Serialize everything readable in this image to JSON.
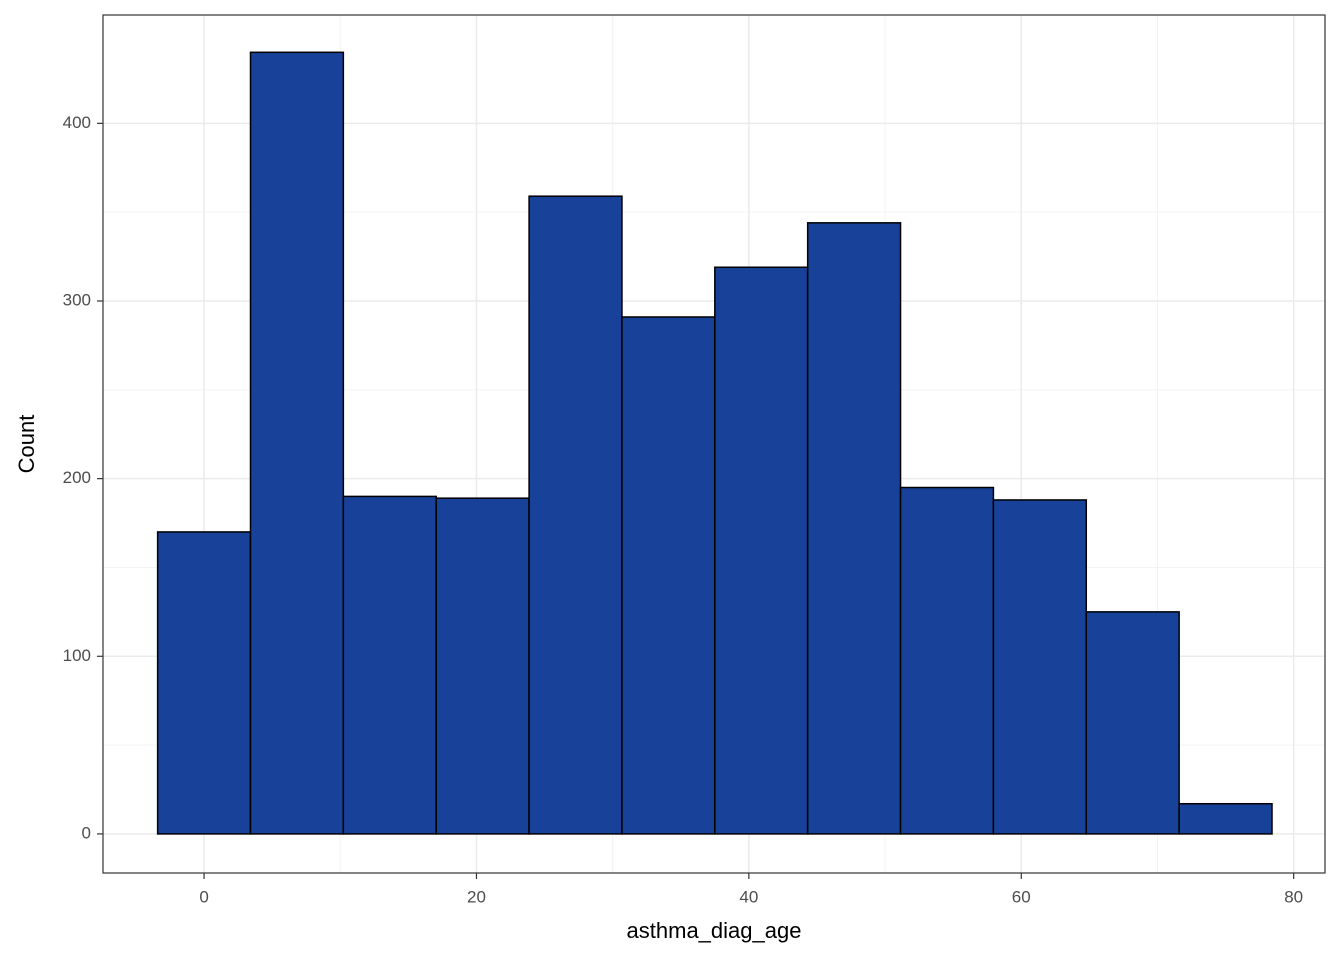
{
  "chart_data": {
    "type": "histogram",
    "x_label": "asthma_diag_age",
    "y_label": "Count",
    "bins": [
      -3.409,
      3.409,
      10.227,
      17.045,
      23.864,
      30.682,
      37.5,
      44.318,
      51.136,
      57.955,
      64.773,
      71.591,
      78.409
    ],
    "values": [
      170,
      440,
      190,
      189,
      359,
      291,
      319,
      344,
      195,
      188,
      125,
      17
    ],
    "color": "#18429a",
    "edge_color": "#000000",
    "xlim": [
      -7.42,
      82.3
    ],
    "xticks": [
      0,
      20,
      40,
      60,
      80
    ],
    "ylim": [
      -22,
      461
    ],
    "yticks": [
      0,
      100,
      200,
      300,
      400
    ],
    "grid": true
  }
}
